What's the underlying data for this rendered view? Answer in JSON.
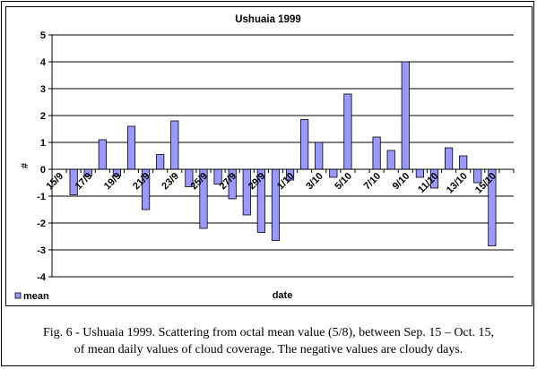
{
  "caption": {
    "line1": "Fig. 6 - Ushuaia 1999. Scattering from octal mean value (5/8), between Sep. 15 – Oct. 15,",
    "line2": "of mean daily values of  cloud coverage. The negative values are cloudy days."
  },
  "chart_data": {
    "type": "bar",
    "title": "Ushuaia 1999",
    "xlabel": "date",
    "ylabel": "#",
    "ylim": [
      -4,
      5
    ],
    "yticks": [
      -4,
      -3,
      -2,
      -1,
      0,
      1,
      2,
      3,
      4,
      5
    ],
    "grid": true,
    "legend_position": "bottom-left",
    "bar_color": "#9999ff",
    "categories": [
      "15/9",
      "16/9",
      "17/9",
      "18/9",
      "19/9",
      "20/9",
      "21/9",
      "22/9",
      "23/9",
      "24/9",
      "25/9",
      "26/9",
      "27/9",
      "28/9",
      "29/9",
      "30/9",
      "1/10",
      "2/10",
      "3/10",
      "4/10",
      "5/10",
      "6/10",
      "7/10",
      "8/10",
      "9/10",
      "10/10",
      "11/10",
      "12/10",
      "13/10",
      "14/10",
      "15/10",
      "16/10"
    ],
    "tick_labels": [
      "15/9",
      "17/9",
      "19/9",
      "21/9",
      "23/9",
      "25/9",
      "27/9",
      "29/9",
      "1/10",
      "3/10",
      "5/10",
      "7/10",
      "9/10",
      "11/10",
      "13/10",
      "15/10"
    ],
    "series": [
      {
        "name": "mean",
        "values": [
          0,
          -0.95,
          -0.25,
          1.1,
          -0.25,
          1.6,
          -1.5,
          0.55,
          1.8,
          -0.65,
          -2.2,
          -0.55,
          -1.1,
          -1.7,
          -2.35,
          -2.65,
          -0.4,
          1.85,
          1.0,
          -0.3,
          2.8,
          0,
          1.2,
          0.7,
          4.0,
          -0.3,
          -0.7,
          0.8,
          0.5,
          -0.5,
          -2.85,
          0
        ]
      }
    ]
  }
}
